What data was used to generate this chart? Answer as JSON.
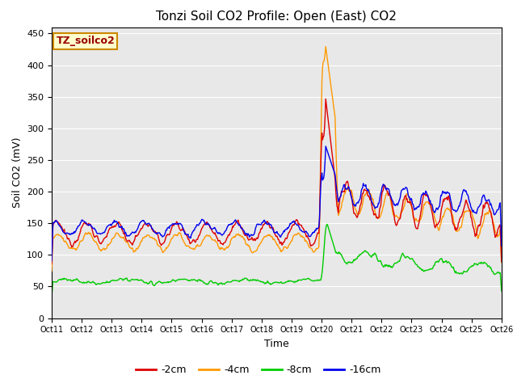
{
  "title": "Tonzi Soil CO2 Profile: Open (East) CO2",
  "ylabel": "Soil CO2 (mV)",
  "xlabel": "Time",
  "annotation": "TZ_soilco2",
  "ylim": [
    0,
    460
  ],
  "yticks": [
    0,
    50,
    100,
    150,
    200,
    250,
    300,
    350,
    400,
    450
  ],
  "xtick_labels": [
    "Oct 11",
    "Oct 12",
    "Oct 13",
    "Oct 14",
    "Oct 15",
    "Oct 16",
    "Oct 17",
    "Oct 18",
    "Oct 19",
    "Oct 20",
    "Oct 21",
    "Oct 22",
    "Oct 23",
    "Oct 24",
    "Oct 25",
    "Oct 26"
  ],
  "colors": {
    "-2cm": "#dd0000",
    "-4cm": "#ff9900",
    "-8cm": "#00cc00",
    "-16cm": "#0000ee"
  },
  "legend_labels": [
    "-2cm",
    "-4cm",
    "-8cm",
    "-16cm"
  ],
  "plot_bg_color": "#e8e8e8",
  "fig_bg_color": "#ffffff",
  "grid_color": "#ffffff",
  "title_fontsize": 11,
  "axis_label_fontsize": 9,
  "tick_fontsize": 8,
  "annotation_fontsize": 9
}
